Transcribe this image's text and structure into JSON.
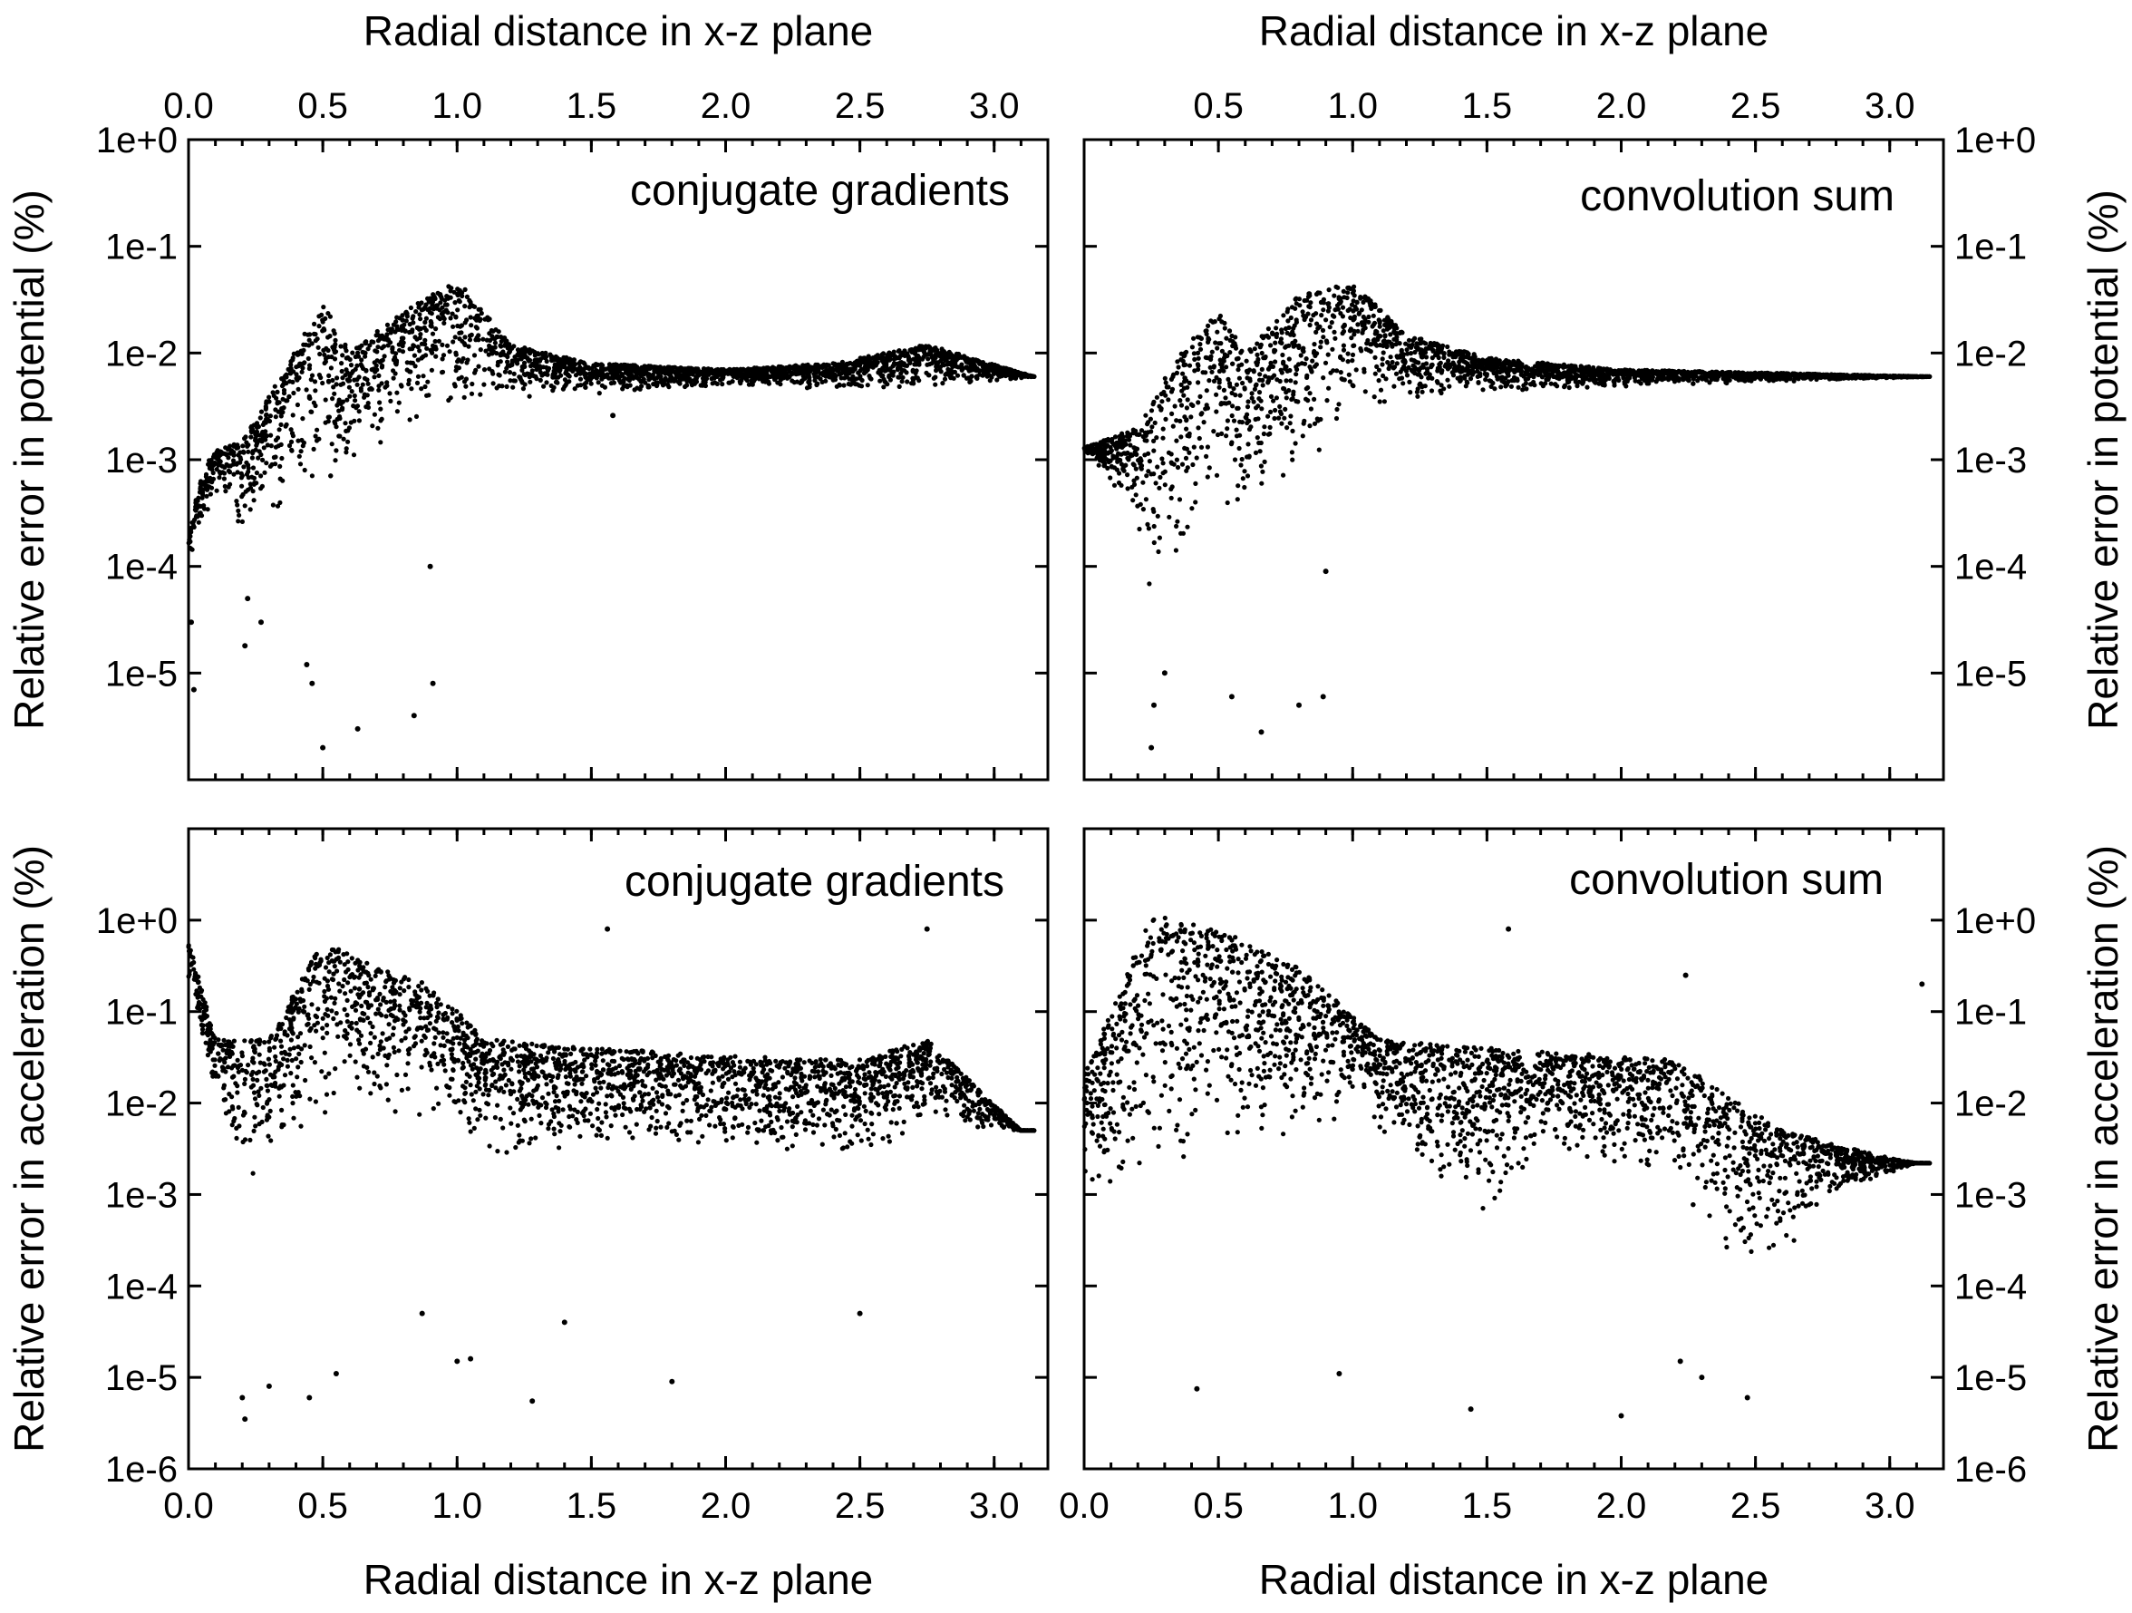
{
  "figure": {
    "top_xlabel": "Radial distance in x-z plane",
    "bottom_xlabel": "Radial distance in x-z plane",
    "ylabel_potential": "Relative error in potential (%)",
    "ylabel_acceleration": "Relative error in acceleration (%)"
  },
  "chart_data": [
    {
      "type": "scatter",
      "title": "conjugate gradients",
      "xlabel": "Radial distance in x-z plane",
      "ylabel": "Relative error in potential (%)",
      "xlim": [
        0.0,
        3.2
      ],
      "ylim": [
        1e-06,
        1
      ],
      "yscale": "log",
      "xticks": [
        "0.0",
        "0.5",
        "1.0",
        "1.5",
        "2.0",
        "2.5",
        "3.0"
      ],
      "yticks": [
        "1e+0",
        "1e-1",
        "1e-2",
        "1e-3",
        "1e-4",
        "1e-5"
      ],
      "grid": false,
      "marker_color": "#000000",
      "band": [
        [
          0.0,
          0.0002
        ],
        [
          0.05,
          0.0008
        ],
        [
          0.1,
          0.0012
        ],
        [
          0.2,
          0.0015
        ],
        [
          0.3,
          0.004
        ],
        [
          0.5,
          0.03
        ],
        [
          0.6,
          0.01
        ],
        [
          0.75,
          0.02
        ],
        [
          1.0,
          0.05
        ],
        [
          1.2,
          0.012
        ],
        [
          1.5,
          0.008
        ],
        [
          2.0,
          0.007
        ],
        [
          2.4,
          0.008
        ],
        [
          2.75,
          0.012
        ],
        [
          3.15,
          0.006
        ]
      ],
      "band_low": [
        [
          0.0,
          0.0001
        ],
        [
          0.1,
          0.0005
        ],
        [
          0.2,
          0.0002
        ],
        [
          0.3,
          0.0003
        ],
        [
          0.5,
          0.0004
        ],
        [
          0.75,
          0.0015
        ],
        [
          1.0,
          0.003
        ],
        [
          1.2,
          0.0035
        ],
        [
          1.5,
          0.004
        ],
        [
          2.0,
          0.005
        ],
        [
          2.4,
          0.0045
        ],
        [
          2.6,
          0.004
        ],
        [
          3.15,
          0.006
        ]
      ],
      "scatter_points": [
        [
          0.01,
          3e-05
        ],
        [
          0.02,
          7e-06
        ],
        [
          0.21,
          1.8e-05
        ],
        [
          0.22,
          5e-05
        ],
        [
          0.27,
          3e-05
        ],
        [
          0.44,
          1.2e-05
        ],
        [
          0.46,
          8e-06
        ],
        [
          0.5,
          2e-06
        ],
        [
          0.63,
          3e-06
        ],
        [
          0.84,
          4e-06
        ],
        [
          0.91,
          8e-06
        ],
        [
          0.9,
          0.0001
        ],
        [
          1.58,
          0.0026
        ]
      ]
    },
    {
      "type": "scatter",
      "title": "convolution sum",
      "xlabel": "Radial distance in x-z plane",
      "ylabel": "Relative error in potential (%)",
      "xlim": [
        0.0,
        3.2
      ],
      "ylim": [
        1e-06,
        1
      ],
      "yscale": "log",
      "xticks": [
        "0.5",
        "1.0",
        "1.5",
        "2.0",
        "2.5",
        "3.0"
      ],
      "yticks": [
        "1e+0",
        "1e-1",
        "1e-2",
        "1e-3",
        "1e-4",
        "1e-5"
      ],
      "grid": false,
      "marker_color": "#000000",
      "band": [
        [
          0.0,
          0.0013
        ],
        [
          0.2,
          0.002
        ],
        [
          0.35,
          0.01
        ],
        [
          0.5,
          0.025
        ],
        [
          0.6,
          0.01
        ],
        [
          0.8,
          0.035
        ],
        [
          1.0,
          0.045
        ],
        [
          1.2,
          0.015
        ],
        [
          1.5,
          0.009
        ],
        [
          2.0,
          0.007
        ],
        [
          3.15,
          0.006
        ]
      ],
      "band_low": [
        [
          0.0,
          0.0012
        ],
        [
          0.15,
          0.0004
        ],
        [
          0.25,
          5e-05
        ],
        [
          0.35,
          0.0001
        ],
        [
          0.5,
          0.0002
        ],
        [
          0.75,
          0.0005
        ],
        [
          0.9,
          0.001
        ],
        [
          1.0,
          0.003
        ],
        [
          1.5,
          0.004
        ],
        [
          2.0,
          0.0048
        ],
        [
          3.15,
          0.006
        ]
      ],
      "scatter_points": [
        [
          0.25,
          2e-06
        ],
        [
          0.26,
          5e-06
        ],
        [
          0.3,
          1e-05
        ],
        [
          0.55,
          6e-06
        ],
        [
          0.66,
          2.8e-06
        ],
        [
          0.8,
          5e-06
        ],
        [
          0.89,
          6e-06
        ],
        [
          0.9,
          9e-05
        ]
      ]
    },
    {
      "type": "scatter",
      "title": "conjugate gradients",
      "xlabel": "Radial distance in x-z plane",
      "ylabel": "Relative error in acceleration (%)",
      "xlim": [
        0.0,
        3.2
      ],
      "ylim": [
        1e-06,
        10
      ],
      "yscale": "log",
      "xticks": [
        "0.0",
        "0.5",
        "1.0",
        "1.5",
        "2.0",
        "2.5",
        "3.0"
      ],
      "yticks": [
        "1e+0",
        "1e-1",
        "1e-2",
        "1e-3",
        "1e-4",
        "1e-5",
        "1e-6"
      ],
      "grid": false,
      "marker_color": "#000000",
      "band": [
        [
          0.0,
          0.6
        ],
        [
          0.1,
          0.05
        ],
        [
          0.3,
          0.05
        ],
        [
          0.5,
          0.6
        ],
        [
          0.7,
          0.3
        ],
        [
          0.9,
          0.2
        ],
        [
          1.1,
          0.05
        ],
        [
          1.5,
          0.04
        ],
        [
          2.3,
          0.03
        ],
        [
          2.5,
          0.03
        ],
        [
          2.75,
          0.05
        ],
        [
          3.1,
          0.005
        ]
      ],
      "band_low": [
        [
          0.0,
          0.2
        ],
        [
          0.1,
          0.01
        ],
        [
          0.25,
          0.001
        ],
        [
          0.35,
          0.003
        ],
        [
          0.6,
          0.008
        ],
        [
          1.0,
          0.005
        ],
        [
          1.2,
          0.002
        ],
        [
          1.5,
          0.003
        ],
        [
          2.0,
          0.003
        ],
        [
          2.4,
          0.002
        ],
        [
          2.75,
          0.005
        ],
        [
          3.1,
          0.005
        ]
      ],
      "scatter_points": [
        [
          0.2,
          6e-06
        ],
        [
          0.21,
          3.5e-06
        ],
        [
          0.3,
          8e-06
        ],
        [
          0.45,
          6e-06
        ],
        [
          0.55,
          1.1e-05
        ],
        [
          1.0,
          1.5e-05
        ],
        [
          1.05,
          1.6e-05
        ],
        [
          1.28,
          5.5e-06
        ],
        [
          1.8,
          9e-06
        ],
        [
          0.87,
          5e-05
        ],
        [
          1.4,
          4e-05
        ],
        [
          2.5,
          5e-05
        ],
        [
          2.75,
          0.8
        ],
        [
          1.56,
          0.8
        ]
      ]
    },
    {
      "type": "scatter",
      "title": "convolution sum",
      "xlabel": "Radial distance in x-z plane",
      "ylabel": "Relative error in acceleration (%)",
      "xlim": [
        0.0,
        3.2
      ],
      "ylim": [
        1e-06,
        10
      ],
      "yscale": "log",
      "xticks": [
        "0.0",
        "0.5",
        "1.0",
        "1.5",
        "2.0",
        "2.5",
        "3.0"
      ],
      "yticks": [
        "1e+0",
        "1e-1",
        "1e-2",
        "1e-3",
        "1e-4",
        "1e-5",
        "1e-6"
      ],
      "grid": false,
      "marker_color": "#000000",
      "band": [
        [
          0.0,
          0.02
        ],
        [
          0.25,
          1.2
        ],
        [
          0.5,
          0.8
        ],
        [
          0.8,
          0.3
        ],
        [
          1.1,
          0.05
        ],
        [
          1.5,
          0.04
        ],
        [
          2.2,
          0.03
        ],
        [
          2.6,
          0.005
        ],
        [
          3.0,
          0.0025
        ],
        [
          3.1,
          0.0022
        ]
      ],
      "band_low": [
        [
          0.0,
          0.001
        ],
        [
          0.2,
          0.0005
        ],
        [
          0.4,
          0.002
        ],
        [
          0.8,
          0.003
        ],
        [
          1.0,
          0.01
        ],
        [
          1.5,
          0.0003
        ],
        [
          1.7,
          0.003
        ],
        [
          2.2,
          0.001
        ],
        [
          2.5,
          0.0001
        ],
        [
          2.8,
          0.001
        ],
        [
          3.1,
          0.0022
        ]
      ],
      "scatter_points": [
        [
          0.42,
          7.5e-06
        ],
        [
          0.95,
          1.1e-05
        ],
        [
          1.44,
          4.5e-06
        ],
        [
          2.0,
          3.8e-06
        ],
        [
          2.47,
          6e-06
        ],
        [
          2.3,
          1e-05
        ],
        [
          2.22,
          1.5e-05
        ],
        [
          2.24,
          0.25
        ],
        [
          3.12,
          0.2
        ],
        [
          1.58,
          0.8
        ]
      ]
    }
  ]
}
